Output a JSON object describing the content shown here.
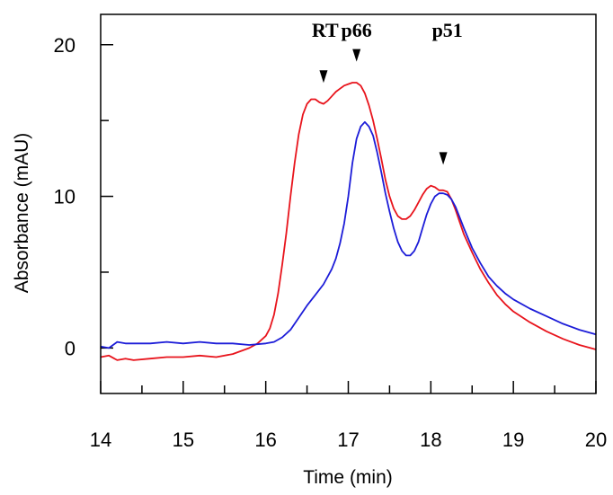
{
  "chart_data": {
    "type": "line",
    "title": "",
    "xlabel": "Time (min)",
    "ylabel": "Absorbance (mAU)",
    "xlim": [
      14,
      20
    ],
    "ylim": [
      -3,
      22
    ],
    "x_ticks": [
      14,
      15,
      16,
      17,
      18,
      19,
      20
    ],
    "x_minor_ticks": [
      14.5,
      15.5,
      16.5,
      17.5,
      18.5,
      19.5
    ],
    "y_ticks": [
      0,
      10,
      20
    ],
    "y_minor_ticks": [
      5,
      15
    ],
    "grid": false,
    "legend": "none",
    "annotations": [
      {
        "text": "RT",
        "x": 16.72,
        "y": 21.0
      },
      {
        "text": "p66",
        "x": 17.1,
        "y": 21.0
      },
      {
        "text": "p51",
        "x": 18.2,
        "y": 21.0
      }
    ],
    "markers": [
      {
        "x": 16.7,
        "y": 17.9
      },
      {
        "x": 17.1,
        "y": 19.3
      },
      {
        "x": 18.15,
        "y": 12.5
      }
    ],
    "series": [
      {
        "color": "#e8141c",
        "x": [
          14.0,
          14.1,
          14.2,
          14.3,
          14.4,
          14.6,
          14.8,
          15.0,
          15.2,
          15.4,
          15.6,
          15.8,
          15.9,
          16.0,
          16.05,
          16.1,
          16.15,
          16.2,
          16.25,
          16.3,
          16.35,
          16.4,
          16.45,
          16.5,
          16.55,
          16.6,
          16.65,
          16.7,
          16.75,
          16.8,
          16.85,
          16.9,
          16.95,
          17.0,
          17.05,
          17.1,
          17.15,
          17.2,
          17.25,
          17.3,
          17.35,
          17.4,
          17.45,
          17.5,
          17.55,
          17.6,
          17.65,
          17.7,
          17.75,
          17.8,
          17.85,
          17.9,
          17.95,
          18.0,
          18.05,
          18.1,
          18.15,
          18.2,
          18.25,
          18.3,
          18.35,
          18.4,
          18.5,
          18.6,
          18.7,
          18.8,
          18.9,
          19.0,
          19.2,
          19.4,
          19.6,
          19.8,
          20.0
        ],
        "y": [
          -0.6,
          -0.5,
          -0.8,
          -0.7,
          -0.8,
          -0.7,
          -0.6,
          -0.6,
          -0.5,
          -0.6,
          -0.4,
          0.0,
          0.3,
          0.8,
          1.3,
          2.2,
          3.6,
          5.5,
          7.6,
          10.0,
          12.2,
          14.1,
          15.4,
          16.1,
          16.4,
          16.4,
          16.2,
          16.1,
          16.3,
          16.6,
          16.9,
          17.1,
          17.3,
          17.4,
          17.5,
          17.5,
          17.3,
          16.8,
          16.0,
          15.0,
          13.8,
          12.5,
          11.1,
          10.0,
          9.2,
          8.7,
          8.5,
          8.5,
          8.7,
          9.1,
          9.6,
          10.1,
          10.5,
          10.7,
          10.6,
          10.4,
          10.4,
          10.3,
          9.8,
          9.1,
          8.3,
          7.5,
          6.3,
          5.2,
          4.3,
          3.5,
          2.9,
          2.4,
          1.7,
          1.1,
          0.6,
          0.2,
          -0.1
        ]
      },
      {
        "color": "#1c1cd8",
        "x": [
          14.0,
          14.1,
          14.2,
          14.3,
          14.4,
          14.6,
          14.8,
          15.0,
          15.2,
          15.4,
          15.6,
          15.8,
          16.0,
          16.1,
          16.2,
          16.3,
          16.4,
          16.5,
          16.6,
          16.7,
          16.8,
          16.85,
          16.9,
          16.95,
          17.0,
          17.05,
          17.1,
          17.15,
          17.2,
          17.25,
          17.3,
          17.35,
          17.4,
          17.45,
          17.5,
          17.55,
          17.6,
          17.65,
          17.7,
          17.75,
          17.8,
          17.85,
          17.9,
          17.95,
          18.0,
          18.05,
          18.1,
          18.15,
          18.2,
          18.25,
          18.3,
          18.35,
          18.4,
          18.5,
          18.6,
          18.7,
          18.8,
          18.9,
          19.0,
          19.2,
          19.4,
          19.6,
          19.8,
          20.0
        ],
        "y": [
          0.1,
          0.0,
          0.4,
          0.3,
          0.3,
          0.3,
          0.4,
          0.3,
          0.4,
          0.3,
          0.3,
          0.2,
          0.3,
          0.4,
          0.7,
          1.2,
          2.0,
          2.8,
          3.5,
          4.2,
          5.2,
          5.9,
          6.9,
          8.2,
          10.0,
          12.2,
          13.8,
          14.6,
          14.9,
          14.6,
          14.0,
          12.9,
          11.6,
          10.2,
          9.0,
          7.9,
          7.0,
          6.4,
          6.1,
          6.1,
          6.4,
          7.0,
          7.9,
          8.8,
          9.5,
          10.0,
          10.2,
          10.2,
          10.1,
          9.8,
          9.3,
          8.6,
          7.9,
          6.6,
          5.6,
          4.7,
          4.1,
          3.6,
          3.2,
          2.6,
          2.1,
          1.6,
          1.2,
          0.9
        ]
      }
    ]
  }
}
